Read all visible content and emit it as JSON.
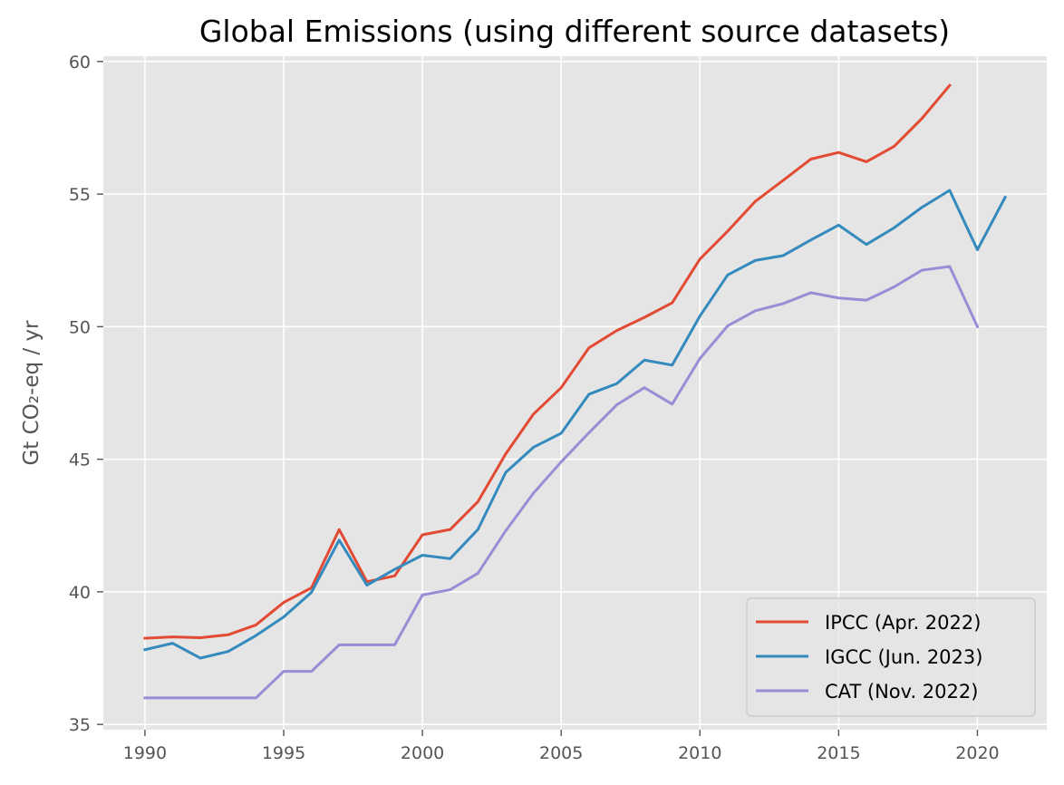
{
  "chart_data": {
    "type": "line",
    "title": "Global Emissions (using different source datasets)",
    "xlabel": "",
    "ylabel": "Gt CO₂-eq / yr",
    "xlim": [
      1988.5,
      2022.5
    ],
    "ylim": [
      34.8,
      60.2
    ],
    "x_ticks": [
      1990,
      1995,
      2000,
      2005,
      2010,
      2015,
      2020
    ],
    "y_ticks": [
      35,
      40,
      45,
      50,
      55,
      60
    ],
    "grid": true,
    "legend_position": "bottom-right",
    "series": [
      {
        "name": "IPCC (Apr. 2022)",
        "color": "#E24A33",
        "x": [
          1990,
          1991,
          1992,
          1993,
          1994,
          1995,
          1996,
          1997,
          1998,
          1999,
          2000,
          2001,
          2002,
          2003,
          2004,
          2005,
          2006,
          2007,
          2008,
          2009,
          2010,
          2011,
          2012,
          2013,
          2014,
          2015,
          2016,
          2017,
          2018,
          2019
        ],
        "values": [
          38.25,
          38.3,
          38.27,
          38.38,
          38.75,
          39.6,
          40.15,
          42.35,
          40.38,
          40.6,
          42.15,
          42.35,
          43.4,
          45.2,
          46.7,
          47.7,
          49.2,
          49.85,
          50.35,
          50.9,
          52.55,
          53.6,
          54.73,
          55.52,
          56.32,
          56.57,
          56.22,
          56.8,
          57.85,
          59.1
        ]
      },
      {
        "name": "IGCC (Jun. 2023)",
        "color": "#348ABD",
        "x": [
          1990,
          1991,
          1992,
          1993,
          1994,
          1995,
          1996,
          1997,
          1998,
          1999,
          2000,
          2001,
          2002,
          2003,
          2004,
          2005,
          2006,
          2007,
          2008,
          2009,
          2010,
          2011,
          2012,
          2013,
          2014,
          2015,
          2016,
          2017,
          2018,
          2019,
          2020,
          2021
        ],
        "values": [
          37.82,
          38.06,
          37.5,
          37.75,
          38.35,
          39.05,
          39.98,
          41.95,
          40.25,
          40.85,
          41.38,
          41.25,
          42.35,
          44.5,
          45.45,
          45.98,
          47.45,
          47.85,
          48.74,
          48.55,
          50.4,
          51.95,
          52.5,
          52.68,
          53.27,
          53.83,
          53.1,
          53.73,
          54.5,
          55.14,
          52.9,
          54.88
        ]
      },
      {
        "name": "CAT (Nov. 2022)",
        "color": "#988ED5",
        "x": [
          1990,
          1991,
          1992,
          1993,
          1994,
          1995,
          1996,
          1997,
          1998,
          1999,
          2000,
          2001,
          2002,
          2003,
          2004,
          2005,
          2006,
          2007,
          2008,
          2009,
          2010,
          2011,
          2012,
          2013,
          2014,
          2015,
          2016,
          2017,
          2018,
          2019,
          2020
        ],
        "values": [
          36,
          36,
          36,
          36,
          36,
          37,
          37,
          38,
          38,
          38,
          39.88,
          40.08,
          40.7,
          42.3,
          43.72,
          44.9,
          46.0,
          47.05,
          47.7,
          47.08,
          48.8,
          50.03,
          50.6,
          50.87,
          51.28,
          51.08,
          51.0,
          51.5,
          52.13,
          52.27,
          50.0
        ]
      }
    ]
  }
}
